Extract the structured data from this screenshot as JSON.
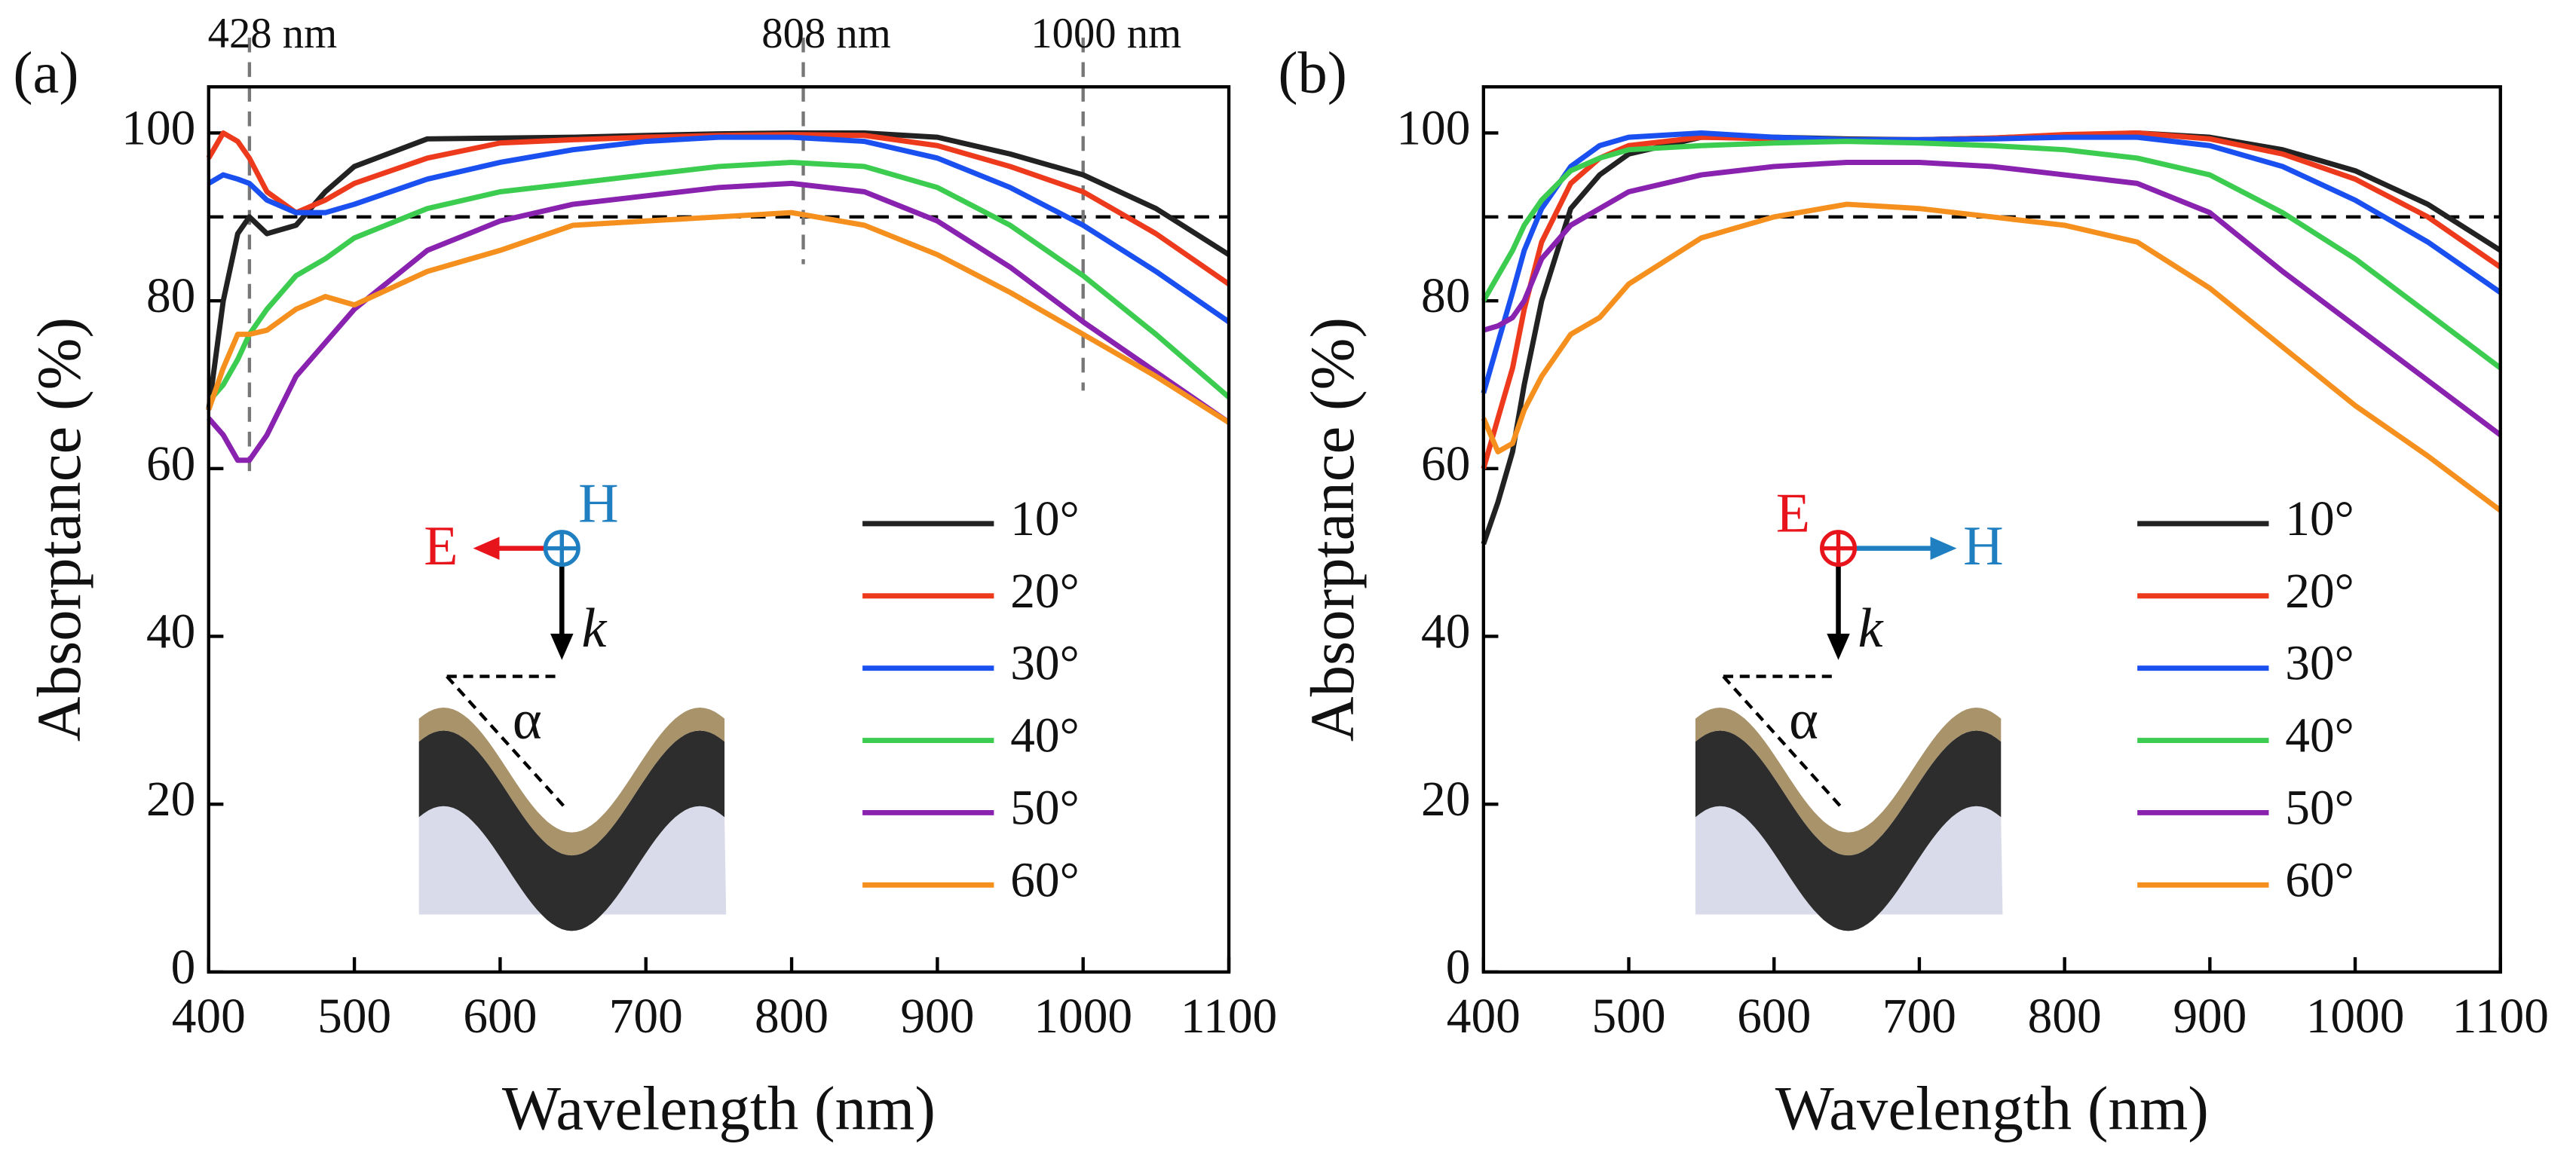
{
  "chart_data": [
    {
      "type": "line",
      "panel_label": "(a)",
      "xlabel": "Wavelength (nm)",
      "ylabel": "Absorptance (%)",
      "xlim": [
        400,
        1100
      ],
      "xticks": [
        400,
        500,
        600,
        700,
        800,
        900,
        1000,
        1100
      ],
      "ylim": [
        0,
        105.5
      ],
      "yticks": [
        0,
        20,
        40,
        60,
        80,
        100
      ],
      "hline": 90,
      "vlines": [
        {
          "value": 428,
          "label": "428 nm"
        },
        {
          "value": 808,
          "label": "808 nm"
        },
        {
          "value": 1000,
          "label": "1000 nm"
        }
      ],
      "inset_labels": [
        "E",
        "H",
        "k",
        "α"
      ],
      "x": [
        400,
        410,
        420,
        428,
        440,
        460,
        480,
        500,
        550,
        600,
        650,
        700,
        750,
        800,
        850,
        900,
        950,
        1000,
        1050,
        1100
      ],
      "series": [
        {
          "name": "10°",
          "color": "#222222",
          "values": [
            67,
            80,
            88,
            90,
            88,
            89,
            93,
            96,
            99.3,
            99.4,
            99.5,
            99.7,
            99.9,
            100,
            100,
            99.5,
            97.5,
            95,
            91,
            85.5
          ]
        },
        {
          "name": "20°",
          "color": "#ee3a1c",
          "values": [
            97,
            100,
            99,
            97,
            93,
            90.5,
            92,
            94,
            97,
            98.8,
            99.2,
            99.5,
            99.7,
            99.8,
            99.7,
            98.5,
            96,
            93,
            88,
            82
          ]
        },
        {
          "name": "30°",
          "color": "#1a4ff0",
          "values": [
            94,
            95,
            94.5,
            94,
            92,
            90.5,
            90.5,
            91.5,
            94.5,
            96.5,
            98,
            99,
            99.5,
            99.5,
            99,
            97,
            93.5,
            89,
            83.5,
            77.5
          ]
        },
        {
          "name": "40°",
          "color": "#3ccc50",
          "values": [
            68,
            70,
            73,
            76,
            79,
            83,
            85,
            87.5,
            91,
            93,
            94,
            95,
            96,
            96.5,
            96,
            93.5,
            89,
            83,
            76,
            68.5
          ]
        },
        {
          "name": "50°",
          "color": "#8a22b0",
          "values": [
            66,
            64,
            61,
            61,
            64,
            71,
            75,
            79,
            86,
            89.5,
            91.5,
            92.5,
            93.5,
            94,
            93,
            89.5,
            84,
            77.5,
            71.5,
            65.5
          ]
        },
        {
          "name": "60°",
          "color": "#f5901e",
          "values": [
            67,
            72,
            76,
            76,
            76.5,
            79,
            80.5,
            79.5,
            83.5,
            86,
            89,
            89.5,
            90,
            90.5,
            89,
            85.5,
            81,
            76,
            71,
            65.5
          ]
        }
      ]
    },
    {
      "type": "line",
      "panel_label": "(b)",
      "xlabel": "Wavelength (nm)",
      "ylabel": "Absorptance (%)",
      "xlim": [
        400,
        1100
      ],
      "xticks": [
        400,
        500,
        600,
        700,
        800,
        900,
        1000,
        1100
      ],
      "ylim": [
        0,
        105.5
      ],
      "yticks": [
        0,
        20,
        40,
        60,
        80,
        100
      ],
      "hline": 90,
      "inset_labels": [
        "E",
        "H",
        "k",
        "α"
      ],
      "x": [
        400,
        410,
        420,
        428,
        440,
        460,
        480,
        500,
        550,
        600,
        650,
        700,
        750,
        800,
        850,
        900,
        950,
        1000,
        1050,
        1100
      ],
      "series": [
        {
          "name": "10°",
          "color": "#222222",
          "values": [
            51,
            56,
            62,
            70,
            80,
            91,
            95,
            97.5,
            99.5,
            99.5,
            99.3,
            99.2,
            99.4,
            99.7,
            100,
            99.5,
            98,
            95.5,
            91.5,
            86
          ]
        },
        {
          "name": "20°",
          "color": "#ee3a1c",
          "values": [
            60,
            66,
            72,
            79,
            87,
            94,
            97,
            98.5,
            99.5,
            99.3,
            99.2,
            99.2,
            99.4,
            99.8,
            100,
            99.3,
            97.5,
            94.5,
            90,
            84
          ]
        },
        {
          "name": "30°",
          "color": "#1a4ff0",
          "values": [
            69,
            75,
            81,
            86,
            91,
            96,
            98.5,
            99.5,
            100,
            99.5,
            99.2,
            99.2,
            99.3,
            99.5,
            99.5,
            98.5,
            96,
            92,
            87,
            81
          ]
        },
        {
          "name": "40°",
          "color": "#3ccc50",
          "values": [
            80,
            83,
            86,
            89,
            92,
            95.5,
            97,
            98,
            98.5,
            98.8,
            99,
            98.8,
            98.5,
            98,
            97,
            95,
            90.5,
            85,
            78.5,
            72
          ]
        },
        {
          "name": "50°",
          "color": "#8a22b0",
          "values": [
            76.5,
            77,
            78,
            80,
            85,
            89,
            91,
            93,
            95,
            96,
            96.5,
            96.5,
            96,
            95,
            94,
            90.5,
            83.5,
            77,
            70.5,
            64
          ]
        },
        {
          "name": "60°",
          "color": "#f5901e",
          "values": [
            66,
            62,
            63,
            67,
            71,
            76,
            78,
            82,
            87.5,
            90,
            91.5,
            91,
            90,
            89,
            87,
            81.5,
            74.5,
            67.5,
            61.5,
            55
          ]
        }
      ]
    }
  ]
}
